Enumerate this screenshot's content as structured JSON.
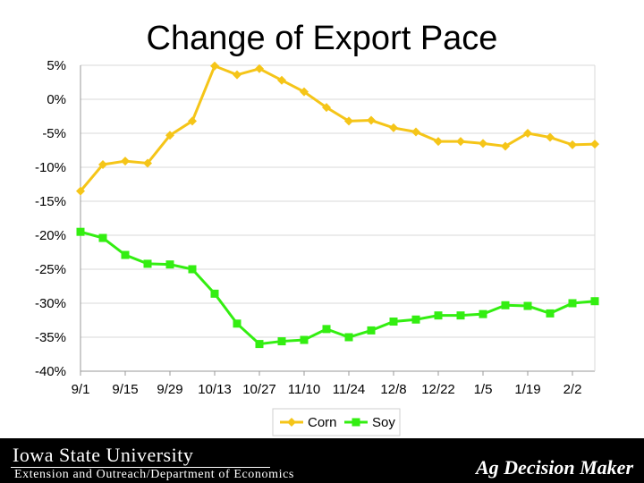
{
  "chart_data": {
    "type": "line",
    "title": "Change of Export Pace",
    "categories": [
      "9/1",
      "9/8",
      "9/15",
      "9/22",
      "9/29",
      "10/6",
      "10/13",
      "10/20",
      "10/27",
      "11/3",
      "11/10",
      "11/17",
      "11/24",
      "12/1",
      "12/8",
      "12/15",
      "12/22",
      "12/29",
      "1/5",
      "1/12",
      "1/19",
      "1/26",
      "2/2",
      "2/9"
    ],
    "x_tick_labels": [
      "9/1",
      "9/15",
      "9/29",
      "10/13",
      "10/27",
      "11/10",
      "11/24",
      "12/8",
      "12/22",
      "1/5",
      "1/19",
      "2/2"
    ],
    "y_tick_labels": [
      "5%",
      "0%",
      "-5%",
      "-10%",
      "-15%",
      "-20%",
      "-25%",
      "-30%",
      "-35%",
      "-40%"
    ],
    "ylim": [
      -40,
      5
    ],
    "grid": true,
    "legend_position": "bottom",
    "series": [
      {
        "name": "Corn",
        "color": "#f5c518",
        "marker": "diamond",
        "values": [
          -13.5,
          -9.6,
          -9.1,
          -9.4,
          -5.3,
          -3.2,
          4.9,
          3.6,
          4.5,
          2.8,
          1.1,
          -1.2,
          -3.2,
          -3.1,
          -4.2,
          -4.8,
          -6.2,
          -6.2,
          -6.5,
          -6.9,
          -5.0,
          -5.6,
          -6.7,
          -6.6
        ]
      },
      {
        "name": "Soy",
        "color": "#33ee11",
        "marker": "square",
        "values": [
          -19.5,
          -20.4,
          -22.9,
          -24.2,
          -24.3,
          -25.0,
          -28.6,
          -33.0,
          -36.0,
          -35.6,
          -35.4,
          -33.8,
          -35.0,
          -34.0,
          -32.7,
          -32.4,
          -31.8,
          -31.8,
          -31.6,
          -30.3,
          -30.4,
          -31.5,
          -30.0,
          -29.7
        ]
      }
    ]
  },
  "footer": {
    "university": "Iowa State University",
    "department": "Extension and Outreach/Department of Economics",
    "brand": "Ag Decision Maker"
  }
}
